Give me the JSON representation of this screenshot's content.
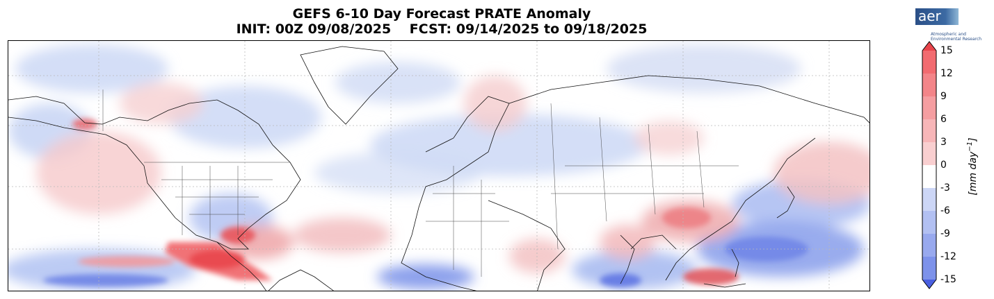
{
  "title": "GEFS 6-10 Day Forecast PRATE Anomaly",
  "subtitle": "INIT: 00Z 09/08/2025    FCST: 09/14/2025 to 09/18/2025",
  "logo": {
    "mark": "aer",
    "line1": "Atmospheric and",
    "line2": "Environmental Research"
  },
  "colorbar": {
    "units": "[mm day",
    "units_sup": "−1",
    "units_close": "]",
    "ticks": [
      "15",
      "12",
      "9",
      "6",
      "3",
      "0",
      "-3",
      "-6",
      "-9",
      "-12",
      "-15"
    ],
    "min": -15,
    "max": 15,
    "positive_color": "#e8454c",
    "negative_color": "#4a5fe0"
  },
  "map": {
    "projection": "equirectangular",
    "lon_range": [
      -180,
      180
    ],
    "lat_range": [
      -20,
      85
    ],
    "gridlines": "dotted"
  }
}
